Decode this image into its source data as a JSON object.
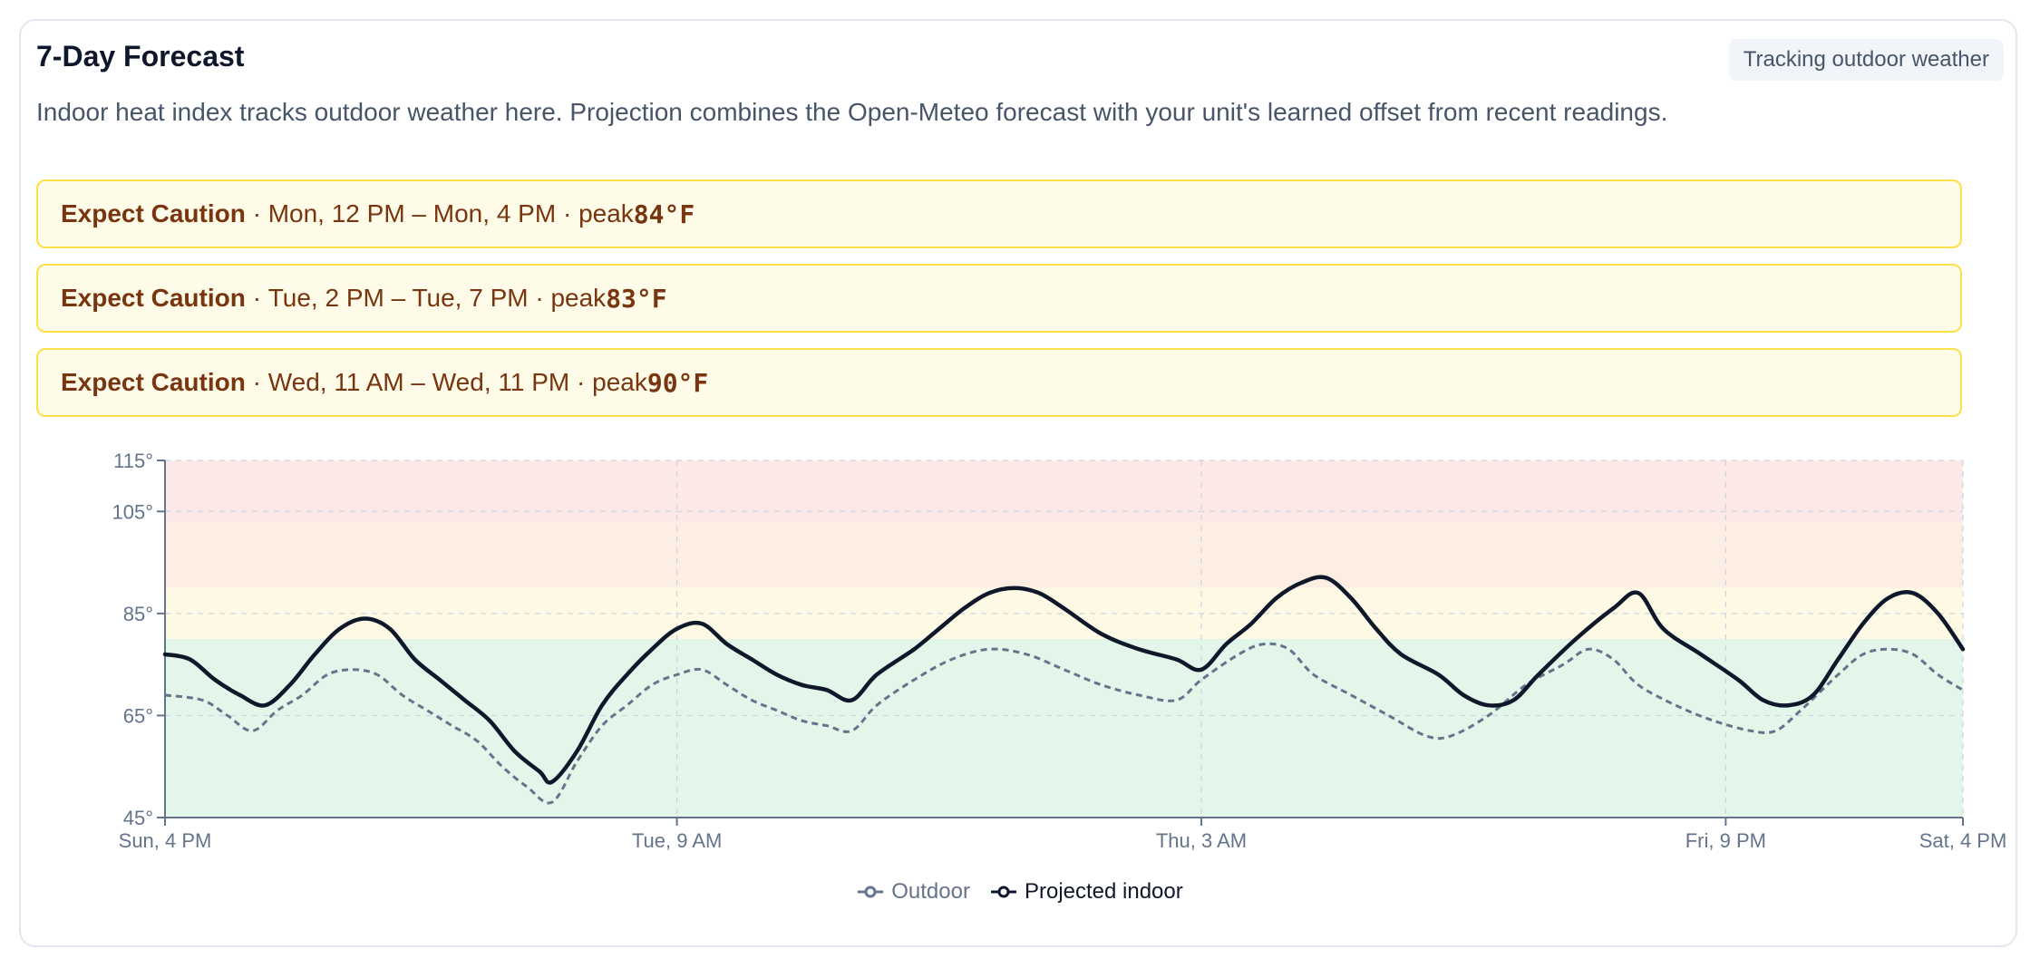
{
  "header": {
    "title": "7-Day Forecast",
    "badge": "Tracking outdoor weather",
    "description": "Indoor heat index tracks outdoor weather here. Projection combines the Open-Meteo forecast with your unit's learned offset from recent readings."
  },
  "alerts": [
    {
      "level": "Expect Caution",
      "window": "Mon, 12 PM – Mon, 4 PM",
      "peak_label": "peak",
      "peak": "84°F"
    },
    {
      "level": "Expect Caution",
      "window": "Tue, 2 PM – Tue, 7 PM",
      "peak_label": "peak",
      "peak": "83°F"
    },
    {
      "level": "Expect Caution",
      "window": "Wed, 11 AM – Wed, 11 PM",
      "peak_label": "peak",
      "peak": "90°F"
    }
  ],
  "legend": {
    "outdoor": "Outdoor",
    "indoor": "Projected indoor"
  },
  "colors": {
    "danger_band": "#fde8e8",
    "extreme_caution_band": "#fdeee3",
    "caution_band": "#fef9e4",
    "safe_band": "#e3f6ea",
    "outdoor_line": "#64748b",
    "indoor_line": "#0f172a",
    "alert_border": "#fde047",
    "alert_bg": "#fefce8",
    "alert_text": "#78350f"
  },
  "chart_data": {
    "type": "line",
    "ylim": [
      45,
      115
    ],
    "yticks": [
      45,
      65,
      85,
      105,
      115
    ],
    "ytick_labels": [
      "45°",
      "65°",
      "85°",
      "105°",
      "115°"
    ],
    "xlim_hours": [
      0,
      144
    ],
    "xticks": [
      {
        "hour": 0,
        "label": "Sun, 4 PM"
      },
      {
        "hour": 41,
        "label": "Tue, 9 AM"
      },
      {
        "hour": 83,
        "label": "Thu, 3 AM"
      },
      {
        "hour": 125,
        "label": "Fri, 9 PM"
      },
      {
        "hour": 144,
        "label": "Sat, 4 PM"
      }
    ],
    "bands": [
      {
        "from": 45,
        "to": 80,
        "level": "safe"
      },
      {
        "from": 80,
        "to": 90,
        "level": "caution"
      },
      {
        "from": 90,
        "to": 103,
        "level": "extreme_caution"
      },
      {
        "from": 103,
        "to": 115,
        "level": "danger"
      }
    ],
    "series": [
      {
        "name": "Outdoor",
        "points": [
          [
            0,
            69
          ],
          [
            3,
            68
          ],
          [
            5,
            65
          ],
          [
            7,
            62
          ],
          [
            9,
            66
          ],
          [
            11,
            69
          ],
          [
            13,
            73
          ],
          [
            15,
            74
          ],
          [
            17,
            73
          ],
          [
            19,
            69
          ],
          [
            21,
            66
          ],
          [
            23,
            63
          ],
          [
            25,
            60
          ],
          [
            27,
            55
          ],
          [
            29,
            51
          ],
          [
            31,
            48
          ],
          [
            33,
            56
          ],
          [
            35,
            63
          ],
          [
            37,
            67
          ],
          [
            39,
            71
          ],
          [
            41,
            73
          ],
          [
            43,
            74
          ],
          [
            45,
            71
          ],
          [
            47,
            68
          ],
          [
            49,
            66
          ],
          [
            51,
            64
          ],
          [
            53,
            63
          ],
          [
            55,
            62
          ],
          [
            57,
            67
          ],
          [
            60,
            72
          ],
          [
            63,
            76
          ],
          [
            66,
            78
          ],
          [
            69,
            77
          ],
          [
            72,
            74
          ],
          [
            75,
            71
          ],
          [
            78,
            69
          ],
          [
            81,
            68
          ],
          [
            83,
            72
          ],
          [
            86,
            77
          ],
          [
            88,
            79
          ],
          [
            90,
            78
          ],
          [
            92,
            73
          ],
          [
            95,
            69
          ],
          [
            98,
            65
          ],
          [
            101,
            61
          ],
          [
            103,
            61
          ],
          [
            106,
            65
          ],
          [
            109,
            71
          ],
          [
            112,
            75
          ],
          [
            114,
            78
          ],
          [
            116,
            76
          ],
          [
            118,
            71
          ],
          [
            121,
            67
          ],
          [
            124,
            64
          ],
          [
            127,
            62
          ],
          [
            129,
            62
          ],
          [
            131,
            66
          ],
          [
            134,
            73
          ],
          [
            136,
            77
          ],
          [
            138,
            78
          ],
          [
            140,
            77
          ],
          [
            142,
            73
          ],
          [
            144,
            70
          ]
        ]
      },
      {
        "name": "Projected indoor",
        "points": [
          [
            0,
            77
          ],
          [
            2,
            76
          ],
          [
            4,
            72
          ],
          [
            6,
            69
          ],
          [
            8,
            67
          ],
          [
            10,
            71
          ],
          [
            12,
            77
          ],
          [
            14,
            82
          ],
          [
            16,
            84
          ],
          [
            18,
            82
          ],
          [
            20,
            76
          ],
          [
            22,
            72
          ],
          [
            24,
            68
          ],
          [
            26,
            64
          ],
          [
            28,
            58
          ],
          [
            30,
            54
          ],
          [
            31,
            52
          ],
          [
            33,
            58
          ],
          [
            35,
            67
          ],
          [
            37,
            73
          ],
          [
            39,
            78
          ],
          [
            41,
            82
          ],
          [
            43,
            83
          ],
          [
            45,
            79
          ],
          [
            47,
            76
          ],
          [
            49,
            73
          ],
          [
            51,
            71
          ],
          [
            53,
            70
          ],
          [
            55,
            68
          ],
          [
            57,
            73
          ],
          [
            60,
            78
          ],
          [
            62,
            82
          ],
          [
            64,
            86
          ],
          [
            66,
            89
          ],
          [
            68,
            90
          ],
          [
            70,
            89
          ],
          [
            72,
            86
          ],
          [
            75,
            81
          ],
          [
            78,
            78
          ],
          [
            81,
            76
          ],
          [
            83,
            74
          ],
          [
            85,
            79
          ],
          [
            87,
            83
          ],
          [
            89,
            88
          ],
          [
            91,
            91
          ],
          [
            93,
            92
          ],
          [
            95,
            88
          ],
          [
            97,
            82
          ],
          [
            99,
            77
          ],
          [
            102,
            73
          ],
          [
            104,
            69
          ],
          [
            106,
            67
          ],
          [
            108,
            68
          ],
          [
            110,
            73
          ],
          [
            113,
            80
          ],
          [
            116,
            86
          ],
          [
            118,
            89
          ],
          [
            120,
            82
          ],
          [
            123,
            77
          ],
          [
            126,
            72
          ],
          [
            128,
            68
          ],
          [
            130,
            67
          ],
          [
            132,
            69
          ],
          [
            134,
            76
          ],
          [
            136,
            83
          ],
          [
            138,
            88
          ],
          [
            140,
            89
          ],
          [
            142,
            85
          ],
          [
            144,
            78
          ]
        ]
      }
    ]
  }
}
